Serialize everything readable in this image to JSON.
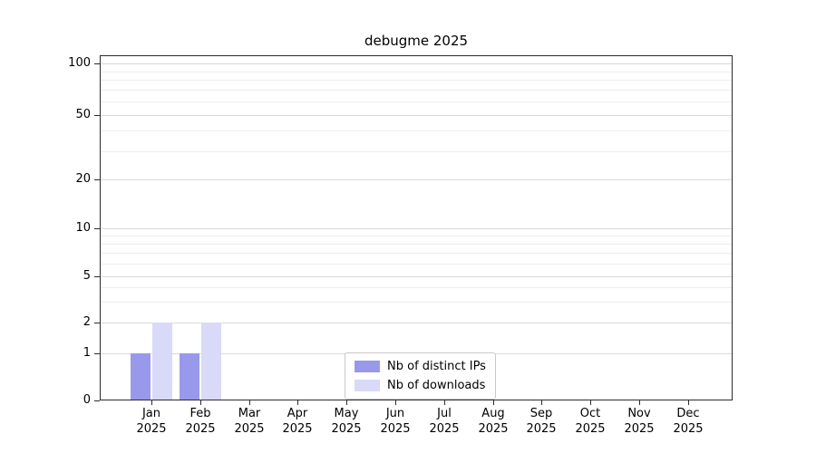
{
  "title": "debugme 2025",
  "chart_data": {
    "type": "bar",
    "title": "debugme 2025",
    "categories": [
      "Jan",
      "Feb",
      "Mar",
      "Apr",
      "May",
      "Jun",
      "Jul",
      "Aug",
      "Sep",
      "Oct",
      "Nov",
      "Dec"
    ],
    "category_year": "2025",
    "series": [
      {
        "name": "Nb of distinct IPs",
        "color": "#9999ec",
        "values": [
          1,
          1,
          0,
          0,
          0,
          0,
          0,
          0,
          0,
          0,
          0,
          0
        ]
      },
      {
        "name": "Nb of downloads",
        "color": "#d9d9f8",
        "values": [
          2,
          2,
          0,
          0,
          0,
          0,
          0,
          0,
          0,
          0,
          0,
          0
        ]
      }
    ],
    "xlabel": "",
    "ylabel": "",
    "y_scale": "log",
    "y_ticks": [
      0,
      1,
      2,
      5,
      10,
      20,
      50,
      100
    ],
    "y_minor_ticks": [
      3,
      4,
      6,
      7,
      8,
      9,
      30,
      40,
      60,
      70,
      80,
      90
    ],
    "ylim": [
      0,
      100
    ],
    "grid": "horizontal",
    "legend_position": "lower center"
  }
}
